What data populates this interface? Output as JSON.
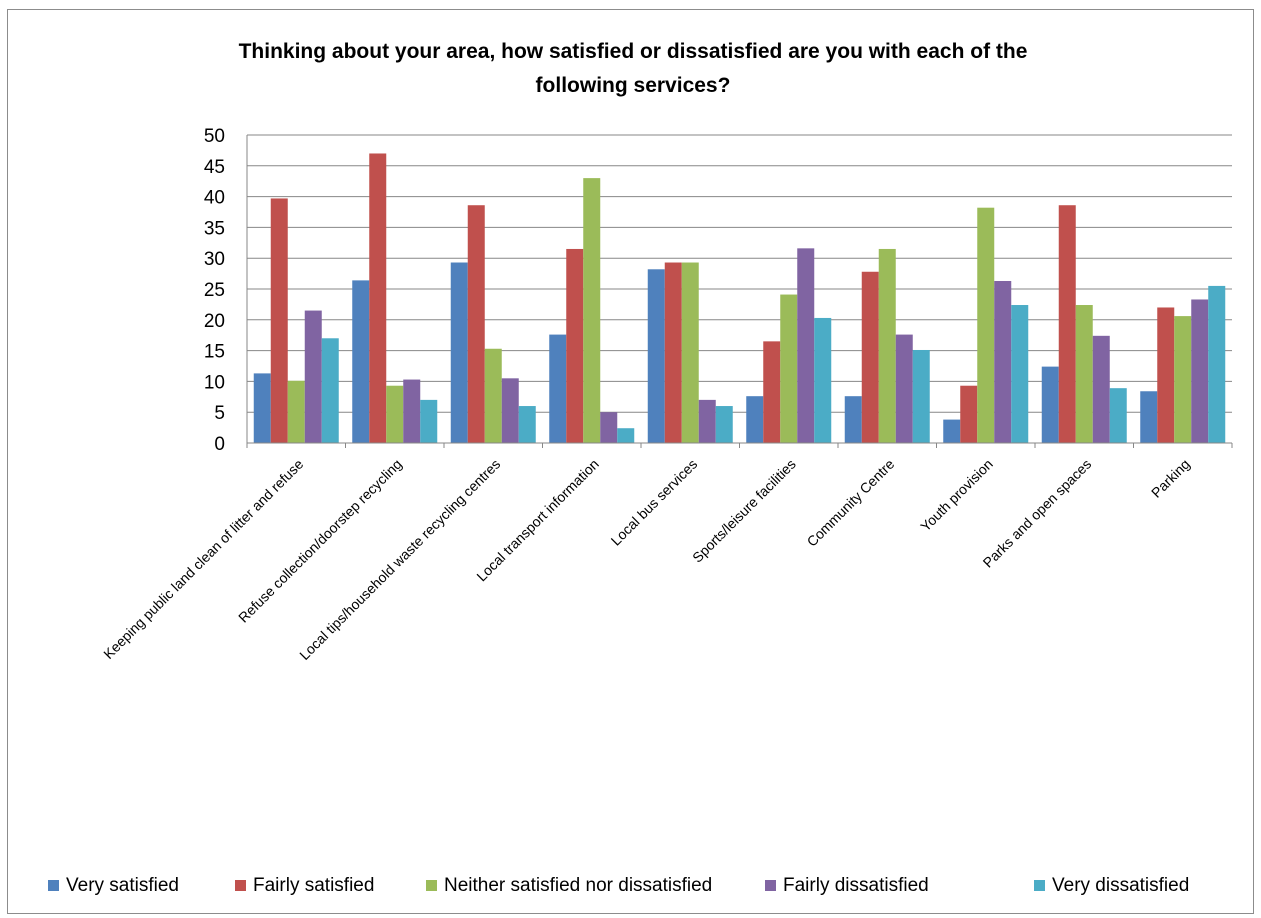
{
  "chart_data": {
    "type": "bar",
    "title": "Thinking about your area, how satisfied or dissatisfied are you with each of the following services?",
    "title_lines": [
      "Thinking about your area, how satisfied or dissatisfied are you with each of the",
      "following services?"
    ],
    "xlabel": "",
    "ylabel": "",
    "ylim": [
      0,
      50
    ],
    "yticks": [
      "0",
      "5",
      "10",
      "15",
      "20",
      "25",
      "30",
      "35",
      "40",
      "45",
      "50"
    ],
    "grid": true,
    "legend_position": "bottom",
    "categories": [
      "Keeping public land clean of litter and refuse",
      "Refuse collection/doorstep recycling",
      "Local tips/household waste recycling centres",
      "Local transport information",
      "Local bus services",
      "Sports/leisure facilities",
      "Community Centre",
      "Youth provision",
      "Parks and open spaces",
      "Parking"
    ],
    "series": [
      {
        "name": "Very satisfied",
        "color": "#4f81bd",
        "values": [
          11.3,
          26.4,
          29.3,
          17.6,
          28.2,
          7.6,
          7.6,
          3.8,
          12.4,
          8.4
        ]
      },
      {
        "name": "Fairly satisfied",
        "color": "#c0504d",
        "values": [
          39.7,
          47.0,
          38.6,
          31.5,
          29.3,
          16.5,
          27.8,
          9.3,
          38.6,
          22.0
        ]
      },
      {
        "name": "Neither satisfied nor dissatisfied",
        "color": "#9bbb59",
        "values": [
          10.1,
          9.3,
          15.3,
          43.0,
          29.3,
          24.1,
          31.5,
          38.2,
          22.4,
          20.6
        ]
      },
      {
        "name": "Fairly dissatisfied",
        "color": "#8064a2",
        "values": [
          21.5,
          10.3,
          10.5,
          5.0,
          7.0,
          31.6,
          17.6,
          26.3,
          17.4,
          23.3
        ]
      },
      {
        "name": "Very dissatisfied",
        "color": "#4bacc6",
        "values": [
          17.0,
          7.0,
          6.0,
          2.4,
          6.0,
          20.3,
          15.1,
          22.4,
          8.9,
          25.5
        ]
      }
    ]
  }
}
